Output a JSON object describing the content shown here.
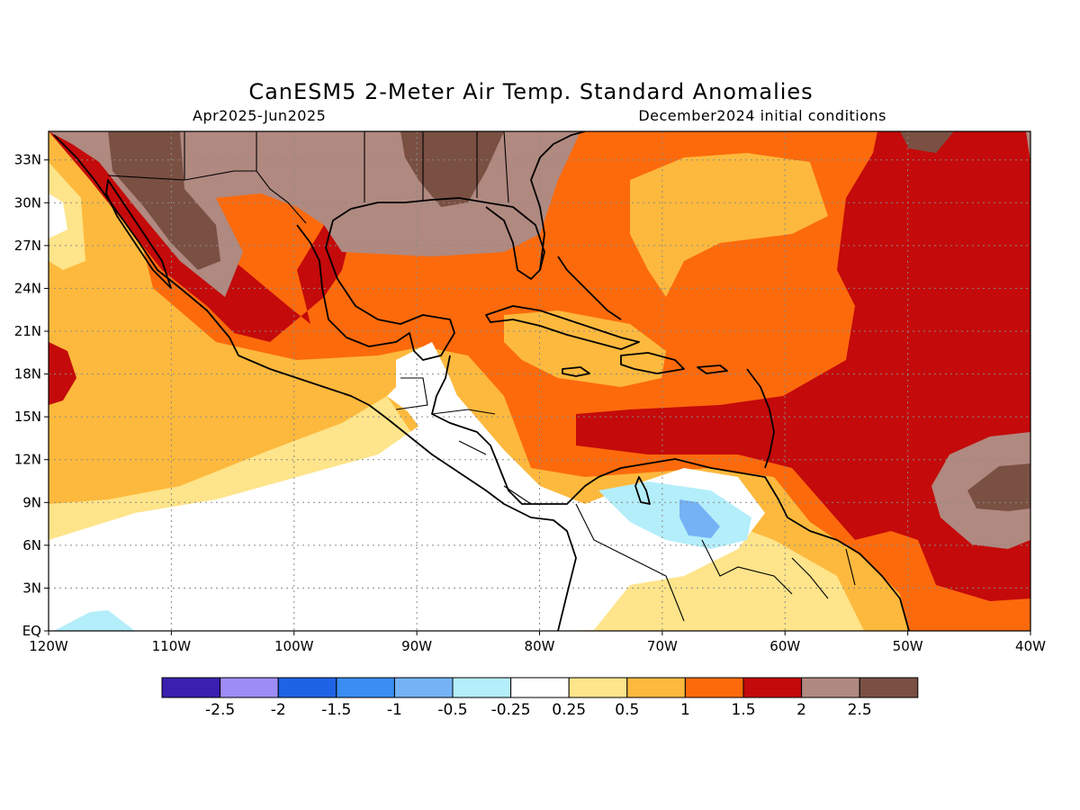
{
  "title": "CanESM5 2-Meter Air Temp. Standard Anomalies",
  "subtitle_left": "Apr2025-Jun2025",
  "subtitle_right": "December2024 initial conditions",
  "colors": {
    "neg_2_5": "#3a1fb0",
    "neg_2": "#9e8cf5",
    "neg_1_5": "#1e63e6",
    "neg_1": "#3a8ef2",
    "neg_0_5": "#75b2f5",
    "neg_0_25": "#b4eefa",
    "neutral": "#ffffff",
    "pos_0_25": "#fee48a",
    "pos_0_5": "#fdb93d",
    "pos_1": "#fc6a0c",
    "pos_1_5": "#c40a0a",
    "pos_2": "#b08980",
    "pos_2_5": "#7a5043"
  },
  "map": {
    "lon_range": [
      -120,
      -40
    ],
    "lat_range": [
      0,
      35
    ],
    "x_ticks": [
      "120W",
      "110W",
      "100W",
      "90W",
      "80W",
      "70W",
      "60W",
      "50W",
      "40W"
    ],
    "y_ticks": [
      "EQ",
      "3N",
      "6N",
      "9N",
      "12N",
      "15N",
      "18N",
      "21N",
      "24N",
      "27N",
      "30N",
      "33N"
    ],
    "grid": "dotted"
  },
  "colorbar": {
    "labels": [
      "-2.5",
      "-2",
      "-1.5",
      "-1",
      "-0.5",
      "-0.25",
      "0.25",
      "0.5",
      "1",
      "1.5",
      "2",
      "2.5"
    ],
    "swatches": [
      "#3a1fb0",
      "#9e8cf5",
      "#1e63e6",
      "#3a8ef2",
      "#75b2f5",
      "#b4eefa",
      "#ffffff",
      "#fee48a",
      "#fdb93d",
      "#fc6a0c",
      "#c40a0a",
      "#b08980",
      "#7a5043"
    ]
  }
}
